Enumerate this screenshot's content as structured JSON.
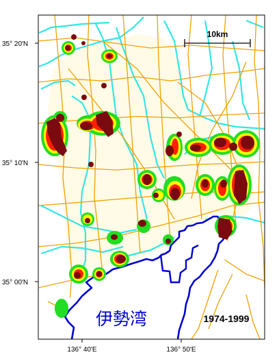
{
  "map": {
    "scale_label": "10km",
    "period": "1974-1999",
    "bay_label": "伊勢湾",
    "lat_labels": [
      "35° 20'N",
      "35° 10'N",
      "35° 00'N"
    ],
    "lon_labels": [
      "136° 40'E",
      "136° 50'E"
    ]
  },
  "colors": {
    "background": "#fffbe6",
    "river": "#33e6e6",
    "road": "#f0a000",
    "coastline": "#0000d0",
    "zone_outer": "#22dd22",
    "zone_mid": "#ffff00",
    "zone_inner": "#ff2000",
    "zone_core": "#7a0a10",
    "frame": "#000000"
  }
}
